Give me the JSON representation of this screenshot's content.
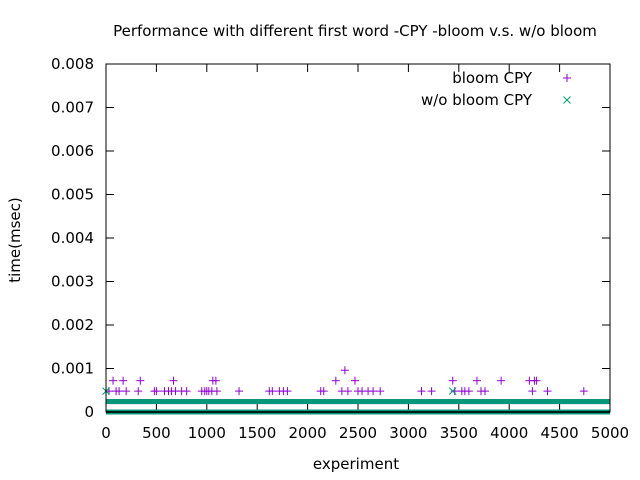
{
  "chart_data": {
    "type": "scatter",
    "title": "Performance with different first word -CPY -bloom v.s. w/o bloom",
    "xlabel": "experiment",
    "ylabel": "time(msec)",
    "xlim": [
      0,
      5000
    ],
    "ylim": [
      0,
      0.008
    ],
    "x_ticks": [
      0,
      500,
      1000,
      1500,
      2000,
      2500,
      3000,
      3500,
      4000,
      4500,
      5000
    ],
    "y_ticks": [
      0,
      0.001,
      0.002,
      0.003,
      0.004,
      0.005,
      0.006,
      0.007,
      0.008
    ],
    "x_tick_labels": [
      "0",
      "500",
      "1000",
      "1500",
      "2000",
      "2500",
      "3000",
      "3500",
      "4000",
      "4500",
      "5000"
    ],
    "y_tick_labels": [
      "0",
      "0.001",
      "0.002",
      "0.003",
      "0.004",
      "0.005",
      "0.006",
      "0.007",
      "0.008"
    ],
    "grid": false,
    "legend_position": "top-right",
    "series": [
      {
        "name": "bloom CPY",
        "marker": "plus",
        "color": "#9400d3",
        "baseline_values": [
          0,
          0.00024
        ],
        "points": [
          [
            30,
            0.00048
          ],
          [
            70,
            0.00072
          ],
          [
            100,
            0.00048
          ],
          [
            130,
            0.00048
          ],
          [
            170,
            0.00072
          ],
          [
            200,
            0.00048
          ],
          [
            320,
            0.00048
          ],
          [
            340,
            0.00072
          ],
          [
            480,
            0.00048
          ],
          [
            500,
            0.00048
          ],
          [
            580,
            0.00048
          ],
          [
            620,
            0.00048
          ],
          [
            650,
            0.00048
          ],
          [
            670,
            0.00072
          ],
          [
            690,
            0.00048
          ],
          [
            750,
            0.00048
          ],
          [
            800,
            0.00048
          ],
          [
            950,
            0.00048
          ],
          [
            980,
            0.00048
          ],
          [
            1000,
            0.00048
          ],
          [
            1020,
            0.00048
          ],
          [
            1050,
            0.00048
          ],
          [
            1060,
            0.00072
          ],
          [
            1090,
            0.00072
          ],
          [
            1100,
            0.00048
          ],
          [
            1320,
            0.00048
          ],
          [
            1620,
            0.00048
          ],
          [
            1650,
            0.00048
          ],
          [
            1720,
            0.00048
          ],
          [
            1760,
            0.00048
          ],
          [
            1800,
            0.00048
          ],
          [
            2130,
            0.00048
          ],
          [
            2160,
            0.00048
          ],
          [
            2280,
            0.00072
          ],
          [
            2340,
            0.00048
          ],
          [
            2370,
            0.00096
          ],
          [
            2400,
            0.00048
          ],
          [
            2470,
            0.00072
          ],
          [
            2500,
            0.00048
          ],
          [
            2540,
            0.00048
          ],
          [
            2600,
            0.00048
          ],
          [
            2650,
            0.00048
          ],
          [
            2720,
            0.00048
          ],
          [
            3130,
            0.00048
          ],
          [
            3230,
            0.00048
          ],
          [
            3440,
            0.00072
          ],
          [
            3460,
            0.00048
          ],
          [
            3530,
            0.00048
          ],
          [
            3560,
            0.00048
          ],
          [
            3600,
            0.00048
          ],
          [
            3680,
            0.00072
          ],
          [
            3720,
            0.00048
          ],
          [
            3760,
            0.00048
          ],
          [
            3920,
            0.00072
          ],
          [
            4200,
            0.00072
          ],
          [
            4230,
            0.00048
          ],
          [
            4250,
            0.00072
          ],
          [
            4270,
            0.00072
          ],
          [
            4380,
            0.00048
          ],
          [
            4740,
            0.00048
          ]
        ]
      },
      {
        "name": "w/o bloom CPY",
        "marker": "cross",
        "color": "#009e73",
        "baseline_values": [
          0,
          0.00024
        ],
        "points": [
          [
            0,
            0.00048
          ],
          [
            3440,
            0.00048
          ]
        ]
      }
    ]
  }
}
